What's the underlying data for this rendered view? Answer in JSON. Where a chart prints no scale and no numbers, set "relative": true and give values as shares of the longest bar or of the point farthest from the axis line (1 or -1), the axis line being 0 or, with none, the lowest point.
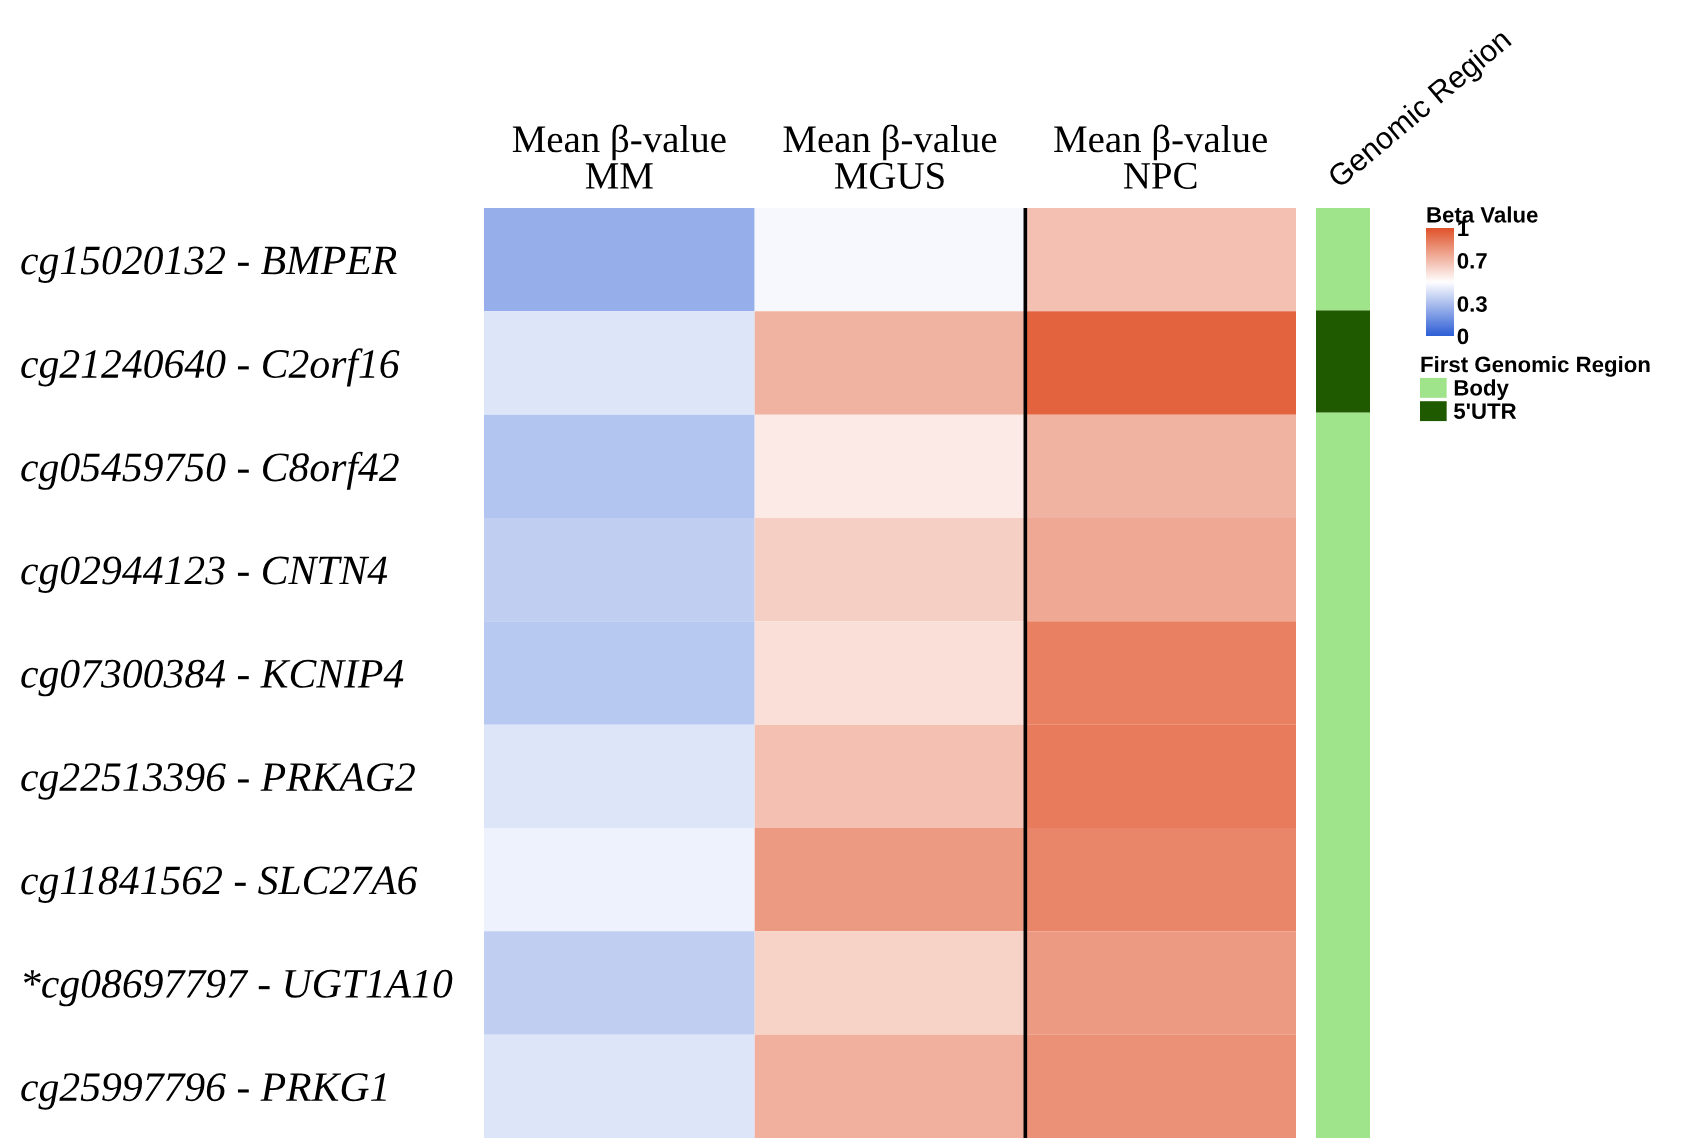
{
  "chart_data": [
    {
      "type": "heatmap",
      "categories": [
        "Mean β-value\nMM",
        "Mean β-value\nMGUS",
        "Mean β-value\nNPC"
      ],
      "y_categories": [
        "cg15020132 - BMPER",
        "cg21240640 - C2orf16",
        "cg05459750 - C8orf42",
        "cg02944123 - CNTN4",
        "cg07300384 - KCNIP4",
        "cg22513396 - PRKAG2",
        "cg11841562 - SLC27A6",
        "*cg08697797 - UGT1A10",
        "cg25997796 - PRKG1"
      ],
      "cells": [
        [
          0.25,
          0.48,
          0.68
        ],
        [
          0.42,
          0.72,
          0.95
        ],
        [
          0.32,
          0.56,
          0.72
        ],
        [
          0.35,
          0.64,
          0.75
        ],
        [
          0.33,
          0.59,
          0.87
        ],
        [
          0.42,
          0.68,
          0.88
        ],
        [
          0.46,
          0.79,
          0.85
        ],
        [
          0.35,
          0.63,
          0.79
        ],
        [
          0.42,
          0.73,
          0.82
        ]
      ],
      "clabel": "Beta Value",
      "clim": [
        0,
        1
      ],
      "cticks": [
        0,
        0.3,
        0.7,
        1
      ]
    },
    {
      "type": "bar",
      "stacked": true,
      "relative": true,
      "categories": [
        "Genomic Region"
      ],
      "series": [
        {
          "name": "Body",
          "color": "#9fe38a",
          "values": [
            0.78
          ]
        },
        {
          "name": "5'UTR",
          "color": "#1f5a00",
          "values": [
            0.11
          ]
        },
        {
          "color": "#9fe38a",
          "values": [
            0.11
          ]
        }
      ],
      "legend_title": "First Genomic Region",
      "legend": "right"
    }
  ]
}
